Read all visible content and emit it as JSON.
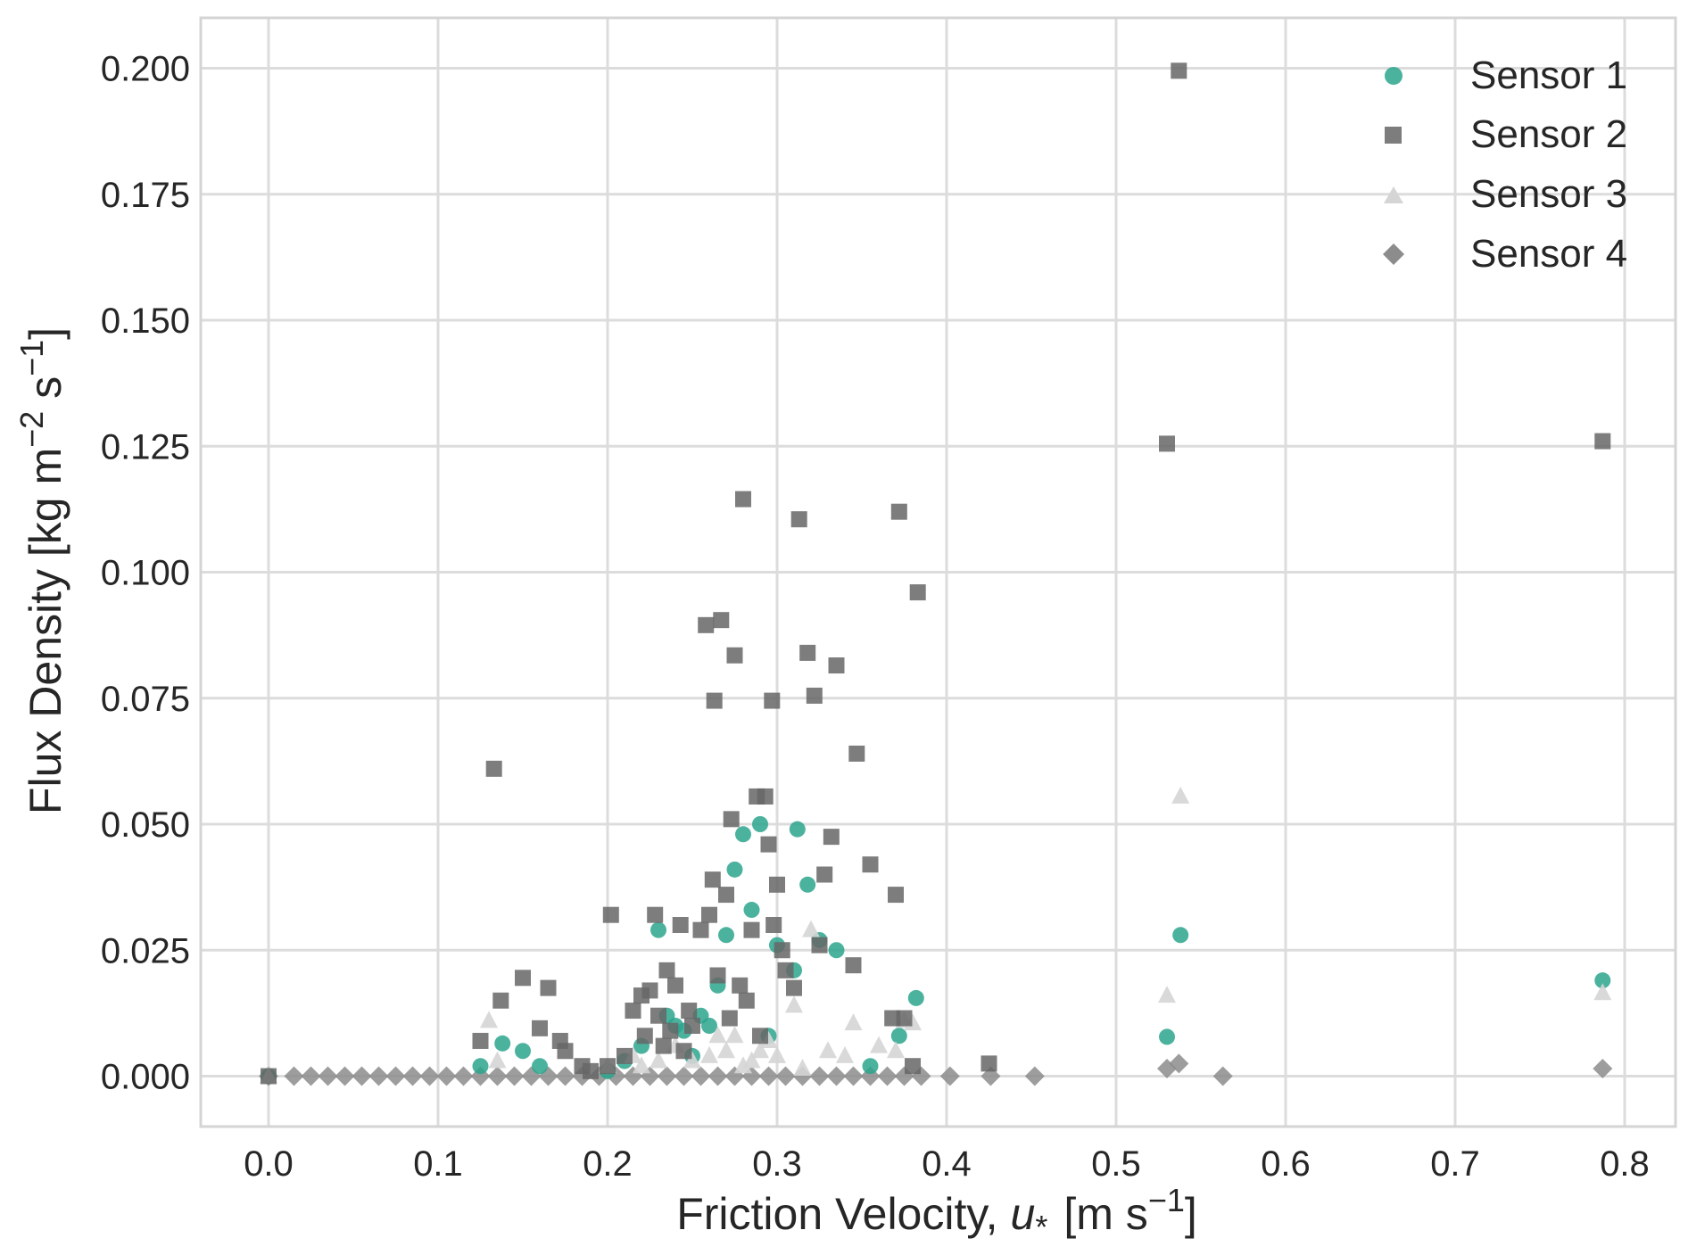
{
  "chart_data": {
    "type": "scatter",
    "title": "",
    "xlabel": "Friction Velocity,",
    "xlabel_symbol": "u",
    "xlabel_subscript": "*",
    "xlabel_units_pre": "[m s",
    "xlabel_units_sup": "−1",
    "xlabel_units_post": "]",
    "ylabel_pre": "Flux Density [kg m",
    "ylabel_sup1": "−2",
    "ylabel_mid": " s",
    "ylabel_sup2": "−1",
    "ylabel_post": "]",
    "xlim": [
      -0.04,
      0.83
    ],
    "ylim": [
      -0.01,
      0.21
    ],
    "xticks": [
      0.0,
      0.1,
      0.2,
      0.3,
      0.4,
      0.5,
      0.6,
      0.7,
      0.8
    ],
    "xtick_labels": [
      "0.0",
      "0.1",
      "0.2",
      "0.3",
      "0.4",
      "0.5",
      "0.6",
      "0.7",
      "0.8"
    ],
    "yticks": [
      0.0,
      0.025,
      0.05,
      0.075,
      0.1,
      0.125,
      0.15,
      0.175,
      0.2
    ],
    "ytick_labels": [
      "0.000",
      "0.025",
      "0.050",
      "0.075",
      "0.100",
      "0.125",
      "0.150",
      "0.175",
      "0.200"
    ],
    "grid": true,
    "legend_position": "top-right",
    "series": [
      {
        "name": "Sensor 1",
        "marker": "circle",
        "color": "#2ca58d",
        "x": [
          0.0,
          0.125,
          0.138,
          0.15,
          0.16,
          0.2,
          0.21,
          0.22,
          0.23,
          0.235,
          0.24,
          0.245,
          0.25,
          0.255,
          0.26,
          0.265,
          0.27,
          0.275,
          0.28,
          0.285,
          0.29,
          0.295,
          0.3,
          0.31,
          0.312,
          0.318,
          0.325,
          0.335,
          0.355,
          0.372,
          0.382,
          0.53,
          0.538,
          0.787
        ],
        "y": [
          0.0,
          0.002,
          0.0065,
          0.005,
          0.002,
          0.001,
          0.003,
          0.006,
          0.029,
          0.012,
          0.01,
          0.009,
          0.004,
          0.012,
          0.01,
          0.018,
          0.028,
          0.041,
          0.048,
          0.033,
          0.05,
          0.008,
          0.026,
          0.021,
          0.049,
          0.038,
          0.027,
          0.025,
          0.002,
          0.008,
          0.0155,
          0.0078,
          0.028,
          0.019
        ]
      },
      {
        "name": "Sensor 2",
        "marker": "square",
        "color": "#666666",
        "x": [
          0.0,
          0.125,
          0.133,
          0.137,
          0.15,
          0.16,
          0.165,
          0.172,
          0.175,
          0.185,
          0.19,
          0.2,
          0.202,
          0.21,
          0.215,
          0.22,
          0.222,
          0.225,
          0.228,
          0.23,
          0.233,
          0.235,
          0.237,
          0.24,
          0.243,
          0.245,
          0.248,
          0.25,
          0.255,
          0.258,
          0.26,
          0.262,
          0.263,
          0.265,
          0.267,
          0.27,
          0.272,
          0.273,
          0.275,
          0.278,
          0.28,
          0.282,
          0.285,
          0.288,
          0.29,
          0.293,
          0.295,
          0.297,
          0.298,
          0.3,
          0.303,
          0.305,
          0.31,
          0.313,
          0.318,
          0.322,
          0.325,
          0.328,
          0.332,
          0.335,
          0.345,
          0.347,
          0.355,
          0.368,
          0.37,
          0.372,
          0.375,
          0.38,
          0.383,
          0.425,
          0.53,
          0.537,
          0.787
        ],
        "y": [
          0.0,
          0.007,
          0.061,
          0.015,
          0.0195,
          0.0095,
          0.0175,
          0.007,
          0.005,
          0.002,
          0.001,
          0.002,
          0.032,
          0.004,
          0.013,
          0.016,
          0.008,
          0.017,
          0.032,
          0.012,
          0.006,
          0.021,
          0.009,
          0.018,
          0.03,
          0.005,
          0.013,
          0.01,
          0.029,
          0.0895,
          0.032,
          0.039,
          0.0745,
          0.02,
          0.0905,
          0.036,
          0.0115,
          0.051,
          0.0835,
          0.018,
          0.1145,
          0.015,
          0.029,
          0.0555,
          0.008,
          0.0555,
          0.046,
          0.0745,
          0.03,
          0.038,
          0.025,
          0.021,
          0.0175,
          0.1105,
          0.084,
          0.0755,
          0.026,
          0.04,
          0.0475,
          0.0815,
          0.022,
          0.064,
          0.042,
          0.0115,
          0.036,
          0.112,
          0.0115,
          0.002,
          0.096,
          0.0025,
          0.1255,
          0.1995,
          0.126
        ]
      },
      {
        "name": "Sensor 3",
        "marker": "triangle",
        "color": "#d5d5d5",
        "x": [
          0.0,
          0.13,
          0.135,
          0.2,
          0.215,
          0.22,
          0.23,
          0.24,
          0.25,
          0.26,
          0.265,
          0.27,
          0.275,
          0.28,
          0.285,
          0.29,
          0.295,
          0.3,
          0.31,
          0.315,
          0.32,
          0.33,
          0.34,
          0.345,
          0.36,
          0.37,
          0.375,
          0.38,
          0.53,
          0.538,
          0.787
        ],
        "y": [
          0.0,
          0.011,
          0.003,
          0.002,
          0.004,
          0.002,
          0.003,
          0.006,
          0.003,
          0.004,
          0.008,
          0.005,
          0.008,
          0.002,
          0.003,
          0.005,
          0.007,
          0.004,
          0.014,
          0.0015,
          0.029,
          0.005,
          0.004,
          0.0105,
          0.006,
          0.005,
          0.011,
          0.0105,
          0.016,
          0.0555,
          0.0165
        ]
      },
      {
        "name": "Sensor 4",
        "marker": "diamond",
        "color": "#8c8c8c",
        "x": [
          0.0,
          0.015,
          0.025,
          0.035,
          0.045,
          0.055,
          0.065,
          0.075,
          0.085,
          0.095,
          0.105,
          0.115,
          0.125,
          0.135,
          0.145,
          0.155,
          0.165,
          0.175,
          0.185,
          0.195,
          0.205,
          0.215,
          0.225,
          0.235,
          0.245,
          0.255,
          0.265,
          0.275,
          0.285,
          0.295,
          0.305,
          0.315,
          0.325,
          0.335,
          0.345,
          0.355,
          0.365,
          0.375,
          0.385,
          0.402,
          0.426,
          0.452,
          0.53,
          0.537,
          0.563,
          0.787
        ],
        "y": [
          0.0,
          0.0,
          0.0,
          0.0,
          0.0,
          0.0,
          0.0,
          0.0,
          0.0,
          0.0,
          0.0,
          0.0,
          0.0,
          0.0,
          0.0,
          0.0,
          0.0,
          0.0,
          0.0,
          0.0,
          0.0,
          0.0,
          0.0,
          0.0,
          0.0,
          0.0,
          0.0,
          0.0,
          0.0,
          0.0,
          0.0,
          0.0,
          0.0,
          0.0,
          0.0,
          0.0,
          0.0,
          0.0,
          0.0,
          0.0,
          0.0,
          0.0,
          0.0015,
          0.0025,
          0.0,
          0.0015
        ]
      }
    ]
  }
}
